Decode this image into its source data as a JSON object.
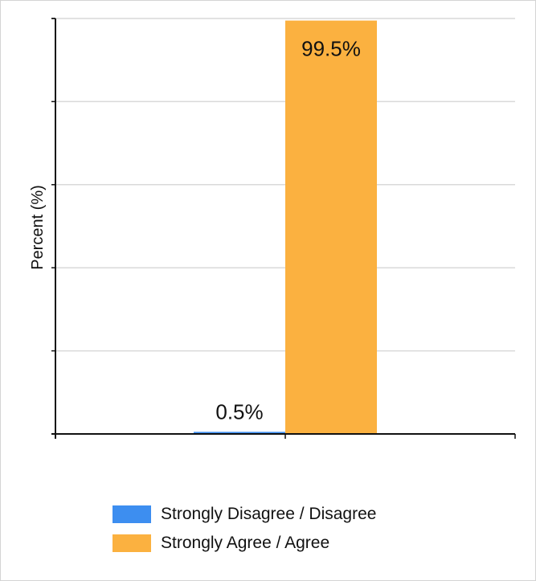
{
  "chart_data": {
    "type": "bar",
    "ylabel": "Percent (%)",
    "ylim": [
      0,
      100
    ],
    "grid": true,
    "legend_position": "bottom",
    "series": [
      {
        "name": "Strongly Disagree / Disagree",
        "value": 0.5,
        "label": "0.5%",
        "color": "#3d8ef0"
      },
      {
        "name": "Strongly Agree / Agree",
        "value": 99.5,
        "label": "99.5%",
        "color": "#fbb140"
      }
    ]
  }
}
